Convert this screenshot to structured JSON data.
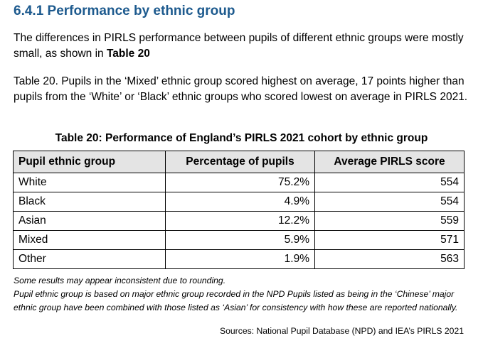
{
  "section": {
    "heading": "6.4.1 Performance by ethnic group"
  },
  "intro": {
    "text": "The differences in PIRLS performance between pupils of different ethnic groups were mostly small, as shown in ",
    "ref": "Table 20"
  },
  "caption_text": "Table 20. Pupils in the ‘Mixed’ ethnic group scored highest on average, 17 points higher than pupils from the ‘White’ or ‘Black’ ethnic groups who scored lowest on average in PIRLS 2021.",
  "table": {
    "title": "Table 20: Performance of England’s PIRLS 2021 cohort by ethnic group",
    "headers": [
      "Pupil ethnic group",
      "Percentage of pupils",
      "Average PIRLS score"
    ],
    "rows": [
      [
        "White",
        "75.2%",
        "554"
      ],
      [
        "Black",
        "4.9%",
        "554"
      ],
      [
        "Asian",
        "12.2%",
        "559"
      ],
      [
        "Mixed",
        "5.9%",
        "571"
      ],
      [
        "Other",
        "1.9%",
        "563"
      ]
    ]
  },
  "notes": [
    "Some results may appear inconsistent due to rounding.",
    "Pupil ethnic group is based on major ethnic group recorded in the NPD Pupils listed as being in the ‘Chinese’ major ethnic group have been combined with those listed as ‘Asian’ for consistency with how these are reported nationally."
  ],
  "source": "Sources: National Pupil Database (NPD) and IEA’s PIRLS 2021",
  "colors": {
    "heading": "#1d5a8e",
    "header_bg": "#e4e4e4"
  }
}
